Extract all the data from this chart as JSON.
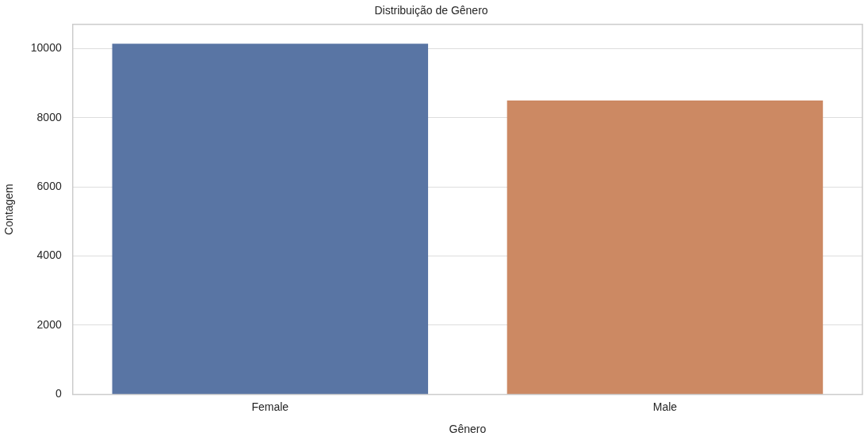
{
  "chart_data": {
    "type": "bar",
    "title": "Distribuição de Gênero",
    "xlabel": "Gênero",
    "ylabel": "Contagem",
    "categories": [
      "Female",
      "Male"
    ],
    "values": [
      10140,
      8500
    ],
    "colors": [
      "#5975a4",
      "#cc8963"
    ],
    "ylim": [
      0,
      10700
    ],
    "yticks": [
      0,
      2000,
      4000,
      6000,
      8000,
      10000
    ],
    "grid": "y",
    "legend": false
  }
}
